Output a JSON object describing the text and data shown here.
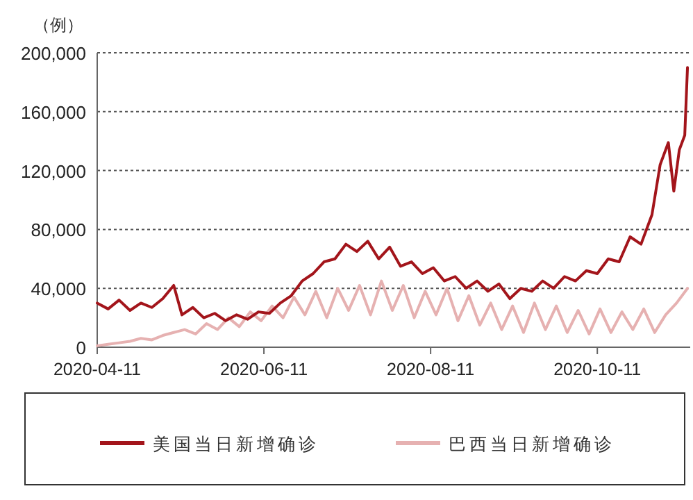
{
  "chart_data": {
    "type": "line",
    "ylabel": "（例）",
    "legend": "bottom",
    "grid": "y",
    "marker": "none",
    "line_style": "solid",
    "xlim": [
      "2020-04-11",
      "2020-11-14"
    ],
    "xticks": [
      "2020-04-11",
      "2020-06-11",
      "2020-08-11",
      "2020-10-11"
    ],
    "ylim": [
      0,
      200000
    ],
    "yticks": [
      0,
      {
        "value": 40000,
        "label": "40,000"
      },
      {
        "value": 80000,
        "label": "80,000"
      },
      {
        "value": 120000,
        "label": "120,000"
      },
      {
        "value": 160000,
        "label": "160,000"
      },
      {
        "value": 200000,
        "label": "200,000"
      }
    ],
    "series": [
      {
        "name": "美国当日新增确诊",
        "color": "#a3151b",
        "x": [
          "2020-04-11",
          "2020-04-15",
          "2020-04-19",
          "2020-04-23",
          "2020-04-27",
          "2020-05-01",
          "2020-05-05",
          "2020-05-09",
          "2020-05-12",
          "2020-05-16",
          "2020-05-20",
          "2020-05-24",
          "2020-05-28",
          "2020-06-01",
          "2020-06-05",
          "2020-06-09",
          "2020-06-13",
          "2020-06-17",
          "2020-06-21",
          "2020-06-25",
          "2020-06-29",
          "2020-07-03",
          "2020-07-07",
          "2020-07-11",
          "2020-07-15",
          "2020-07-19",
          "2020-07-23",
          "2020-07-27",
          "2020-07-31",
          "2020-08-04",
          "2020-08-08",
          "2020-08-12",
          "2020-08-16",
          "2020-08-20",
          "2020-08-24",
          "2020-08-28",
          "2020-09-01",
          "2020-09-05",
          "2020-09-09",
          "2020-09-13",
          "2020-09-17",
          "2020-09-21",
          "2020-09-25",
          "2020-09-29",
          "2020-10-03",
          "2020-10-07",
          "2020-10-11",
          "2020-10-15",
          "2020-10-19",
          "2020-10-23",
          "2020-10-27",
          "2020-10-31",
          "2020-11-03",
          "2020-11-06",
          "2020-11-08",
          "2020-11-10",
          "2020-11-12",
          "2020-11-13"
        ],
        "values": [
          30000,
          26000,
          32000,
          25000,
          30000,
          27000,
          33000,
          42000,
          22000,
          27000,
          20000,
          23000,
          18000,
          22000,
          19000,
          24000,
          23000,
          30000,
          35000,
          45000,
          50000,
          58000,
          60000,
          70000,
          65000,
          72000,
          60000,
          68000,
          55000,
          58000,
          50000,
          54000,
          45000,
          48000,
          40000,
          45000,
          38000,
          43000,
          33000,
          40000,
          38000,
          45000,
          40000,
          48000,
          45000,
          52000,
          50000,
          60000,
          58000,
          75000,
          70000,
          90000,
          124000,
          139000,
          106000,
          134000,
          144000,
          190000
        ]
      },
      {
        "name": "巴西当日新增确诊",
        "color": "#e6b1b1",
        "x": [
          "2020-04-11",
          "2020-04-15",
          "2020-04-19",
          "2020-04-23",
          "2020-04-27",
          "2020-05-01",
          "2020-05-05",
          "2020-05-09",
          "2020-05-13",
          "2020-05-17",
          "2020-05-21",
          "2020-05-25",
          "2020-05-29",
          "2020-06-02",
          "2020-06-06",
          "2020-06-10",
          "2020-06-14",
          "2020-06-18",
          "2020-06-22",
          "2020-06-26",
          "2020-06-30",
          "2020-07-04",
          "2020-07-08",
          "2020-07-12",
          "2020-07-16",
          "2020-07-20",
          "2020-07-24",
          "2020-07-28",
          "2020-08-01",
          "2020-08-05",
          "2020-08-09",
          "2020-08-13",
          "2020-08-17",
          "2020-08-21",
          "2020-08-25",
          "2020-08-29",
          "2020-09-02",
          "2020-09-06",
          "2020-09-10",
          "2020-09-14",
          "2020-09-18",
          "2020-09-22",
          "2020-09-26",
          "2020-09-30",
          "2020-10-04",
          "2020-10-08",
          "2020-10-12",
          "2020-10-16",
          "2020-10-20",
          "2020-10-24",
          "2020-10-28",
          "2020-11-01",
          "2020-11-05",
          "2020-11-09",
          "2020-11-13"
        ],
        "values": [
          1000,
          2000,
          3000,
          4000,
          6000,
          5000,
          8000,
          10000,
          12000,
          9000,
          16000,
          12000,
          20000,
          14000,
          24000,
          18000,
          28000,
          20000,
          34000,
          22000,
          38000,
          20000,
          40000,
          25000,
          42000,
          22000,
          45000,
          25000,
          42000,
          20000,
          38000,
          22000,
          40000,
          18000,
          35000,
          15000,
          30000,
          12000,
          28000,
          10000,
          30000,
          12000,
          28000,
          10000,
          25000,
          9000,
          26000,
          10000,
          24000,
          12000,
          26000,
          10000,
          22000,
          30000,
          40000
        ]
      }
    ]
  }
}
